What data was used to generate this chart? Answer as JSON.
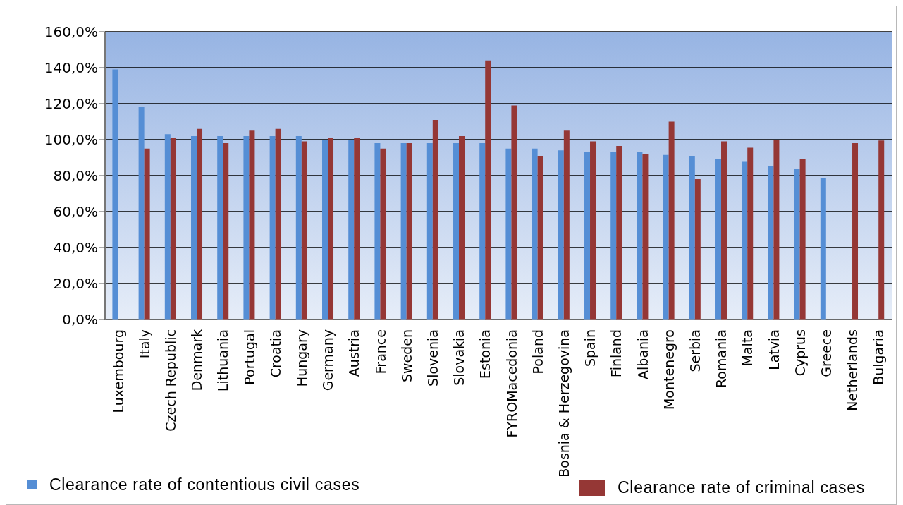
{
  "chart_data": {
    "type": "bar",
    "categories": [
      "Luxembourg",
      "Italy",
      "Czech Republic",
      "Denmark",
      "Lithuania",
      "Portugal",
      "Croatia",
      "Hungary",
      "Germany",
      "Austria",
      "France",
      "Sweden",
      "Slovenia",
      "Slovakia",
      "Estonia",
      "FYROMacedonia",
      "Poland",
      "Bosnia & Herzegovina",
      "Spain",
      "Finland",
      "Albania",
      "Montenegro",
      "Serbia",
      "Romania",
      "Malta",
      "Latvia",
      "Cyprus",
      "Greece",
      "Netherlands",
      "Bulgaria"
    ],
    "series": [
      {
        "name": "Clearance rate of contentious civil cases",
        "color": "#558ed5",
        "values": [
          139,
          118,
          103,
          102,
          102,
          102,
          102,
          102,
          100,
          100,
          98,
          98,
          98,
          98,
          98,
          95,
          95,
          94,
          93,
          93,
          93,
          91.5,
          91,
          89,
          88,
          85.5,
          83.5,
          78.5,
          null,
          null
        ]
      },
      {
        "name": "Clearance rate of criminal cases",
        "color": "#953735",
        "values": [
          null,
          95,
          101,
          106,
          98,
          105,
          106,
          99,
          101,
          101,
          95,
          98,
          111,
          102,
          144,
          119,
          91,
          105,
          99,
          96.5,
          92,
          110,
          78,
          99,
          95.5,
          100,
          89,
          null,
          98,
          99.5
        ]
      }
    ],
    "ylim": [
      0,
      160
    ],
    "yticks": [
      {
        "value": 0,
        "label": "0,0%"
      },
      {
        "value": 20,
        "label": "20,0%"
      },
      {
        "value": 40,
        "label": "40,0%"
      },
      {
        "value": 60,
        "label": "60,0%"
      },
      {
        "value": 80,
        "label": "80,0%"
      },
      {
        "value": 100,
        "label": "100,0%"
      },
      {
        "value": 120,
        "label": "120,0%"
      },
      {
        "value": 140,
        "label": "140,0%"
      },
      {
        "value": 160,
        "label": "160,0%"
      }
    ],
    "grid": "y",
    "legend": "bottom"
  }
}
